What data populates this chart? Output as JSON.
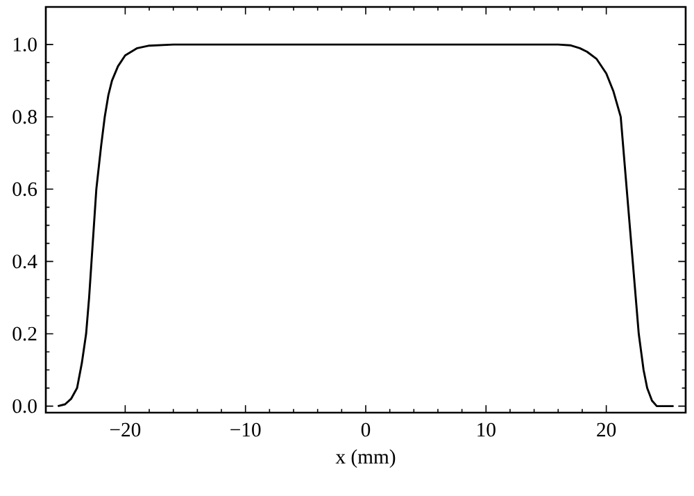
{
  "chart_data": {
    "type": "line",
    "xlabel": "x (mm)",
    "series": [
      {
        "color": "#000000",
        "x": [
          -25.6,
          -25,
          -24.5,
          -24,
          -23.6,
          -23.25,
          -23,
          -22.8,
          -22.6,
          -22.4,
          -22,
          -21.7,
          -21.4,
          -21.1,
          -20.6,
          -20,
          -19,
          -18,
          -16,
          -10,
          0,
          10,
          16,
          17,
          17.8,
          18.4,
          19.2,
          20,
          20.6,
          21.2,
          21.7,
          22.2,
          22.7,
          23.1,
          23.4,
          23.8,
          24.2,
          25,
          25.6
        ],
        "values": [
          0,
          0.005,
          0.02,
          0.05,
          0.12,
          0.2,
          0.3,
          0.4,
          0.5,
          0.6,
          0.72,
          0.8,
          0.86,
          0.9,
          0.94,
          0.97,
          0.99,
          0.997,
          1,
          1,
          1,
          1,
          1,
          0.998,
          0.99,
          0.98,
          0.96,
          0.92,
          0.87,
          0.8,
          0.6,
          0.4,
          0.2,
          0.1,
          0.05,
          0.015,
          0,
          0,
          0
        ]
      }
    ],
    "xlim": [
      -26.6,
      26.6
    ],
    "ylim": [
      -0.018,
      1.104
    ],
    "xticks": [
      {
        "value": -20,
        "label": "−20"
      },
      {
        "value": -10,
        "label": "−10"
      },
      0,
      10,
      20
    ],
    "yticks": [
      {
        "value": 0,
        "label": "0.0"
      },
      {
        "value": 0.2,
        "label": "0.2"
      },
      {
        "value": 0.4,
        "label": "0.4"
      },
      {
        "value": 0.6,
        "label": "0.6"
      },
      {
        "value": 0.8,
        "label": "0.8"
      },
      {
        "value": 1,
        "label": "1.0"
      }
    ],
    "marker": "none",
    "line_style": "solid"
  }
}
